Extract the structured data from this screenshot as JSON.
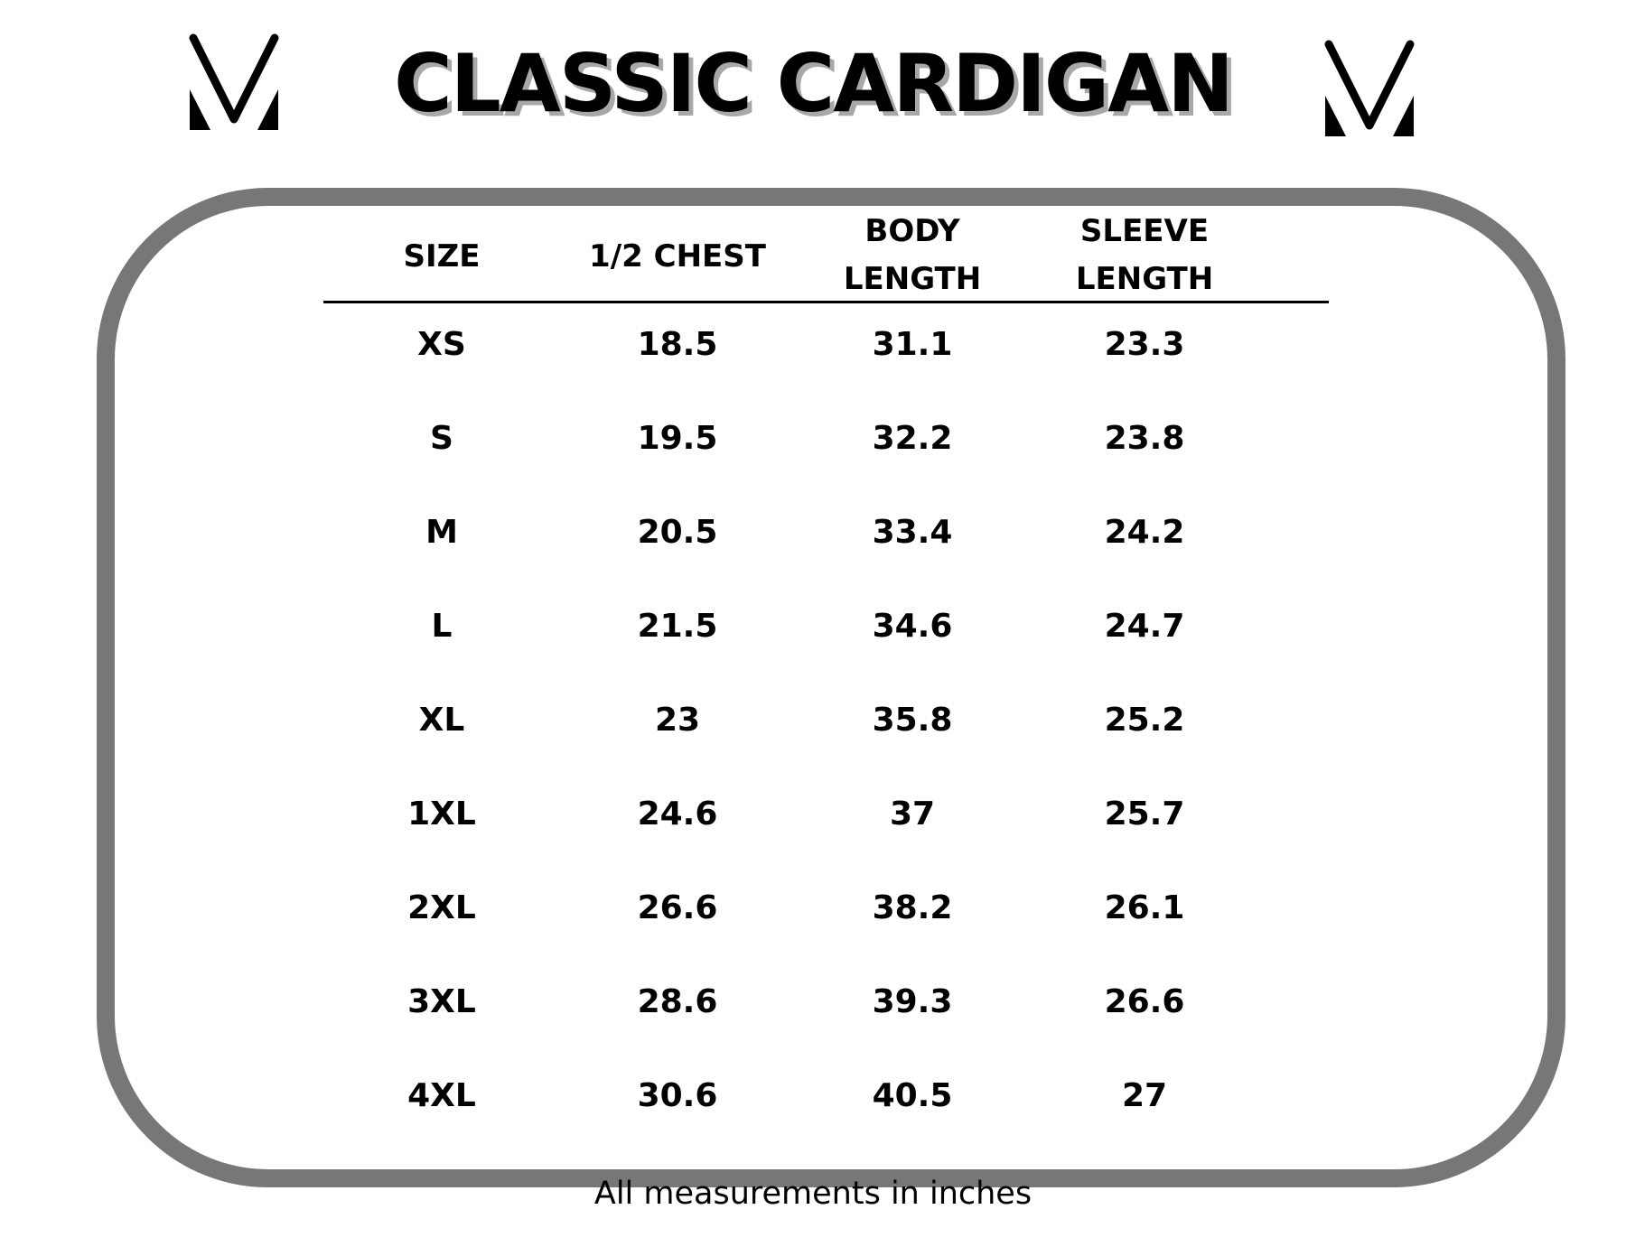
{
  "title": "CLASSIC CARDIGAN",
  "logo_icon": "mv-logo",
  "colors": {
    "frame": "#777777",
    "text": "#000000",
    "title_shadow": "#a8a8a8"
  },
  "table": {
    "headers": [
      [
        "SIZE"
      ],
      [
        "1/2 CHEST"
      ],
      [
        "BODY",
        "LENGTH"
      ],
      [
        "SLEEVE",
        "LENGTH"
      ]
    ],
    "rows": [
      [
        "XS",
        "18.5",
        "31.1",
        "23.3"
      ],
      [
        "S",
        "19.5",
        "32.2",
        "23.8"
      ],
      [
        "M",
        "20.5",
        "33.4",
        "24.2"
      ],
      [
        "L",
        "21.5",
        "34.6",
        "24.7"
      ],
      [
        "XL",
        "23",
        "35.8",
        "25.2"
      ],
      [
        "1XL",
        "24.6",
        "37",
        "25.7"
      ],
      [
        "2XL",
        "26.6",
        "38.2",
        "26.1"
      ],
      [
        "3XL",
        "28.6",
        "39.3",
        "26.6"
      ],
      [
        "4XL",
        "30.6",
        "40.5",
        "27"
      ]
    ]
  },
  "footer": "All measurements in inches"
}
